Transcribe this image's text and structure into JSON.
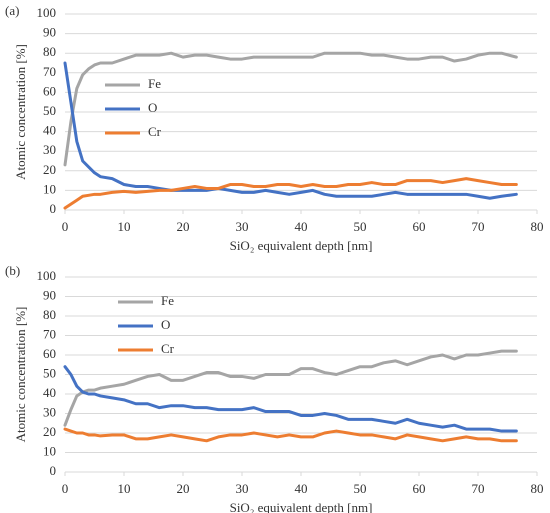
{
  "chart_data": [
    {
      "type": "line",
      "panel_label": "(a)",
      "xlabel": "SiO₂ equivalent depth [nm]",
      "ylabel": "Atomic concentration [%]",
      "x": [
        0,
        1,
        2,
        3,
        4,
        5,
        6,
        8,
        10,
        12,
        14,
        16,
        18,
        20,
        22,
        24,
        26,
        28,
        30,
        32,
        34,
        36,
        38,
        40,
        42,
        44,
        46,
        48,
        50,
        52,
        54,
        56,
        58,
        60,
        62,
        64,
        66,
        68,
        70,
        72,
        74,
        76.5
      ],
      "series": [
        {
          "name": "Fe",
          "color": "#a5a5a5",
          "values": [
            23,
            45,
            62,
            69,
            72,
            74,
            75,
            75,
            77,
            79,
            79,
            79,
            80,
            78,
            79,
            79,
            78,
            77,
            77,
            78,
            78,
            78,
            78,
            78,
            78,
            80,
            80,
            80,
            80,
            79,
            79,
            78,
            77,
            77,
            78,
            78,
            76,
            77,
            79,
            80,
            80,
            78
          ]
        },
        {
          "name": "O",
          "color": "#4472c4",
          "values": [
            75,
            55,
            35,
            25,
            22,
            19,
            17,
            16,
            13,
            12,
            12,
            11,
            10,
            10,
            10,
            10,
            11,
            10,
            9,
            9,
            10,
            9,
            8,
            9,
            10,
            8,
            7,
            7,
            7,
            7,
            8,
            9,
            8,
            8,
            8,
            8,
            8,
            8,
            7,
            6,
            7,
            8
          ]
        },
        {
          "name": "Cr",
          "color": "#ed7d31",
          "values": [
            1,
            3,
            5,
            7,
            7.5,
            8,
            8,
            9,
            9.5,
            9,
            9.5,
            10,
            10,
            11,
            12,
            11,
            11,
            13,
            13,
            12,
            12,
            13,
            13,
            12,
            13,
            12,
            12,
            13,
            13,
            14,
            13,
            13,
            15,
            15,
            15,
            14,
            15,
            16,
            15,
            14,
            13,
            13
          ]
        }
      ],
      "xlim": [
        0,
        80
      ],
      "xticks": [
        0,
        10,
        20,
        30,
        40,
        50,
        60,
        70,
        80
      ],
      "ylim": [
        0,
        100
      ],
      "yticks": [
        0,
        10,
        20,
        30,
        40,
        50,
        60,
        70,
        80,
        90,
        100
      ],
      "grid": true
    },
    {
      "type": "line",
      "panel_label": "(b)",
      "xlabel": "SiO₂ equivalent depth [nm]",
      "ylabel": "Atomic concentration [%]",
      "x": [
        0,
        1,
        2,
        3,
        4,
        5,
        6,
        8,
        10,
        12,
        14,
        16,
        18,
        20,
        22,
        24,
        26,
        28,
        30,
        32,
        34,
        36,
        38,
        40,
        42,
        44,
        46,
        48,
        50,
        52,
        54,
        56,
        58,
        60,
        62,
        64,
        66,
        68,
        70,
        72,
        74,
        76.5
      ],
      "series": [
        {
          "name": "Fe",
          "color": "#a5a5a5",
          "values": [
            24,
            32,
            39,
            41,
            42,
            42,
            43,
            44,
            45,
            47,
            49,
            50,
            47,
            47,
            49,
            51,
            51,
            49,
            49,
            48,
            50,
            50,
            50,
            53,
            53,
            51,
            50,
            52,
            54,
            54,
            56,
            57,
            55,
            57,
            59,
            60,
            58,
            60,
            60,
            61,
            62,
            62
          ]
        },
        {
          "name": "O",
          "color": "#4472c4",
          "values": [
            54,
            50,
            44,
            41,
            40,
            40,
            39,
            38,
            37,
            35,
            35,
            33,
            34,
            34,
            33,
            33,
            32,
            32,
            32,
            33,
            31,
            31,
            31,
            29,
            29,
            30,
            29,
            27,
            27,
            27,
            26,
            25,
            27,
            25,
            24,
            23,
            24,
            22,
            22,
            22,
            21,
            21
          ]
        },
        {
          "name": "Cr",
          "color": "#ed7d31",
          "values": [
            22,
            21,
            20,
            20,
            19,
            19,
            18.5,
            19,
            19,
            17,
            17,
            18,
            19,
            18,
            17,
            16,
            18,
            19,
            19,
            20,
            19,
            18,
            19,
            18,
            18,
            20,
            21,
            20,
            19,
            19,
            18,
            17,
            19,
            18,
            17,
            16,
            17,
            18,
            17,
            17,
            16,
            16
          ]
        }
      ],
      "xlim": [
        0,
        80
      ],
      "xticks": [
        0,
        10,
        20,
        30,
        40,
        50,
        60,
        70,
        80
      ],
      "ylim": [
        0,
        100
      ],
      "yticks": [
        0,
        10,
        20,
        30,
        40,
        50,
        60,
        70,
        80,
        90,
        100
      ],
      "grid": true
    }
  ]
}
